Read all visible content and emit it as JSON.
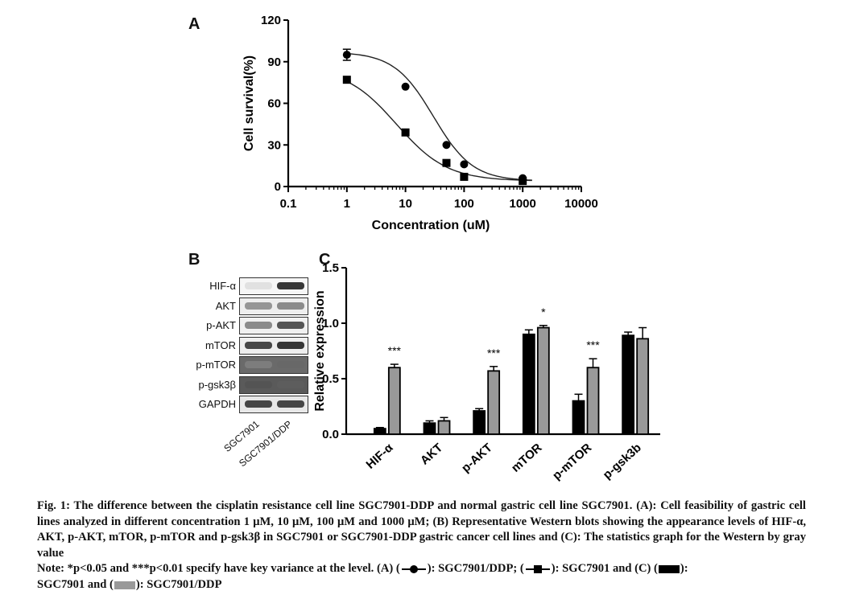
{
  "panels": {
    "a": {
      "letter": "A"
    },
    "b": {
      "letter": "B"
    },
    "c": {
      "letter": "C"
    }
  },
  "chart_data": [
    {
      "type": "line",
      "panel": "A",
      "xlabel": "Concentration (uM)",
      "ylabel": "Cell survival(%)",
      "xscale": "log",
      "xlim": [
        0.1,
        10000
      ],
      "ylim": [
        0,
        120
      ],
      "xticks": [
        "0.1",
        "1",
        "10",
        "100",
        "1000",
        "10000"
      ],
      "yticks": [
        "0",
        "30",
        "60",
        "90",
        "120"
      ],
      "series": [
        {
          "name": "SGC7901/DDP",
          "marker": "circle",
          "x": [
            1,
            10,
            50,
            100,
            1000
          ],
          "y": [
            95,
            72,
            30,
            16,
            6
          ],
          "err": [
            4,
            1,
            1,
            1,
            1
          ]
        },
        {
          "name": "SGC7901",
          "marker": "square",
          "x": [
            1,
            10,
            50,
            100,
            1000
          ],
          "y": [
            77,
            39,
            17,
            7,
            4
          ],
          "err": [
            1,
            1,
            1,
            1,
            1
          ]
        }
      ]
    },
    {
      "type": "bar",
      "panel": "C",
      "ylabel": "Relative expression",
      "ylim": [
        0,
        1.5
      ],
      "yticks": [
        "0.0",
        "0.5",
        "1.0",
        "1.5"
      ],
      "categories": [
        "HIF-α",
        "AKT",
        "p-AKT",
        "mTOR",
        "p-mTOR",
        "p-gsk3b"
      ],
      "series": [
        {
          "name": "SGC7901",
          "color": "#000000",
          "values": [
            0.05,
            0.1,
            0.21,
            0.9,
            0.3,
            0.89
          ],
          "err": [
            0.01,
            0.02,
            0.02,
            0.04,
            0.06,
            0.03
          ]
        },
        {
          "name": "SGC7901/DDP",
          "color": "#999999",
          "values": [
            0.6,
            0.12,
            0.57,
            0.96,
            0.6,
            0.86
          ],
          "err": [
            0.03,
            0.03,
            0.04,
            0.02,
            0.08,
            0.1
          ]
        }
      ],
      "significance": [
        "***",
        "",
        "***",
        "*",
        "***",
        ""
      ]
    }
  ],
  "blot": {
    "rows": [
      {
        "label": "HIF-α",
        "lane1": 0.15,
        "lane2": 0.9,
        "bg": "#f6f6f6"
      },
      {
        "label": "AKT",
        "lane1": 0.55,
        "lane2": 0.6,
        "bg": "#eeeeee"
      },
      {
        "label": "p-AKT",
        "lane1": 0.6,
        "lane2": 0.8,
        "bg": "#f0f0f0"
      },
      {
        "label": "mTOR",
        "lane1": 0.85,
        "lane2": 0.9,
        "bg": "#eeeeee"
      },
      {
        "label": "p-mTOR",
        "lane1": 0.45,
        "lane2": 0.6,
        "bg": "#6a6a6a"
      },
      {
        "label": "p-gsk3β",
        "lane1": 0.7,
        "lane2": 0.65,
        "bg": "#5a5a5a"
      },
      {
        "label": "GAPDH",
        "lane1": 0.85,
        "lane2": 0.85,
        "bg": "#e8e8e8"
      }
    ],
    "lanes": [
      "SGC7901",
      "SGC7901/DDP"
    ]
  },
  "caption": {
    "line1": "Fig. 1: The difference between the cisplatin resistance cell line SGC7901-DDP and normal gastric cell line SGC7901. (A): Cell feasibility of gastric cell lines analyzed in different concentration 1 μM, 10 μM, 100 μM and 1000 μM; (B) Representative Western blots showing the appearance levels of HIF-α, AKT, p-AKT, mTOR, p-mTOR and p-gsk3β in SGC7901 or SGC7901-DDP gastric cancer cell lines and (C): The statistics graph for the Western by gray value",
    "note_a": "Note: *p<0.05 and ***p<0.01 specify have key variance at the level. (A) (",
    "note_b": "): SGC7901/DDP; (",
    "note_c": "): SGC7901 and (C) (",
    "note_d": "):",
    "note_e": "SGC7901 and (",
    "note_f": "): SGC7901/DDP"
  }
}
